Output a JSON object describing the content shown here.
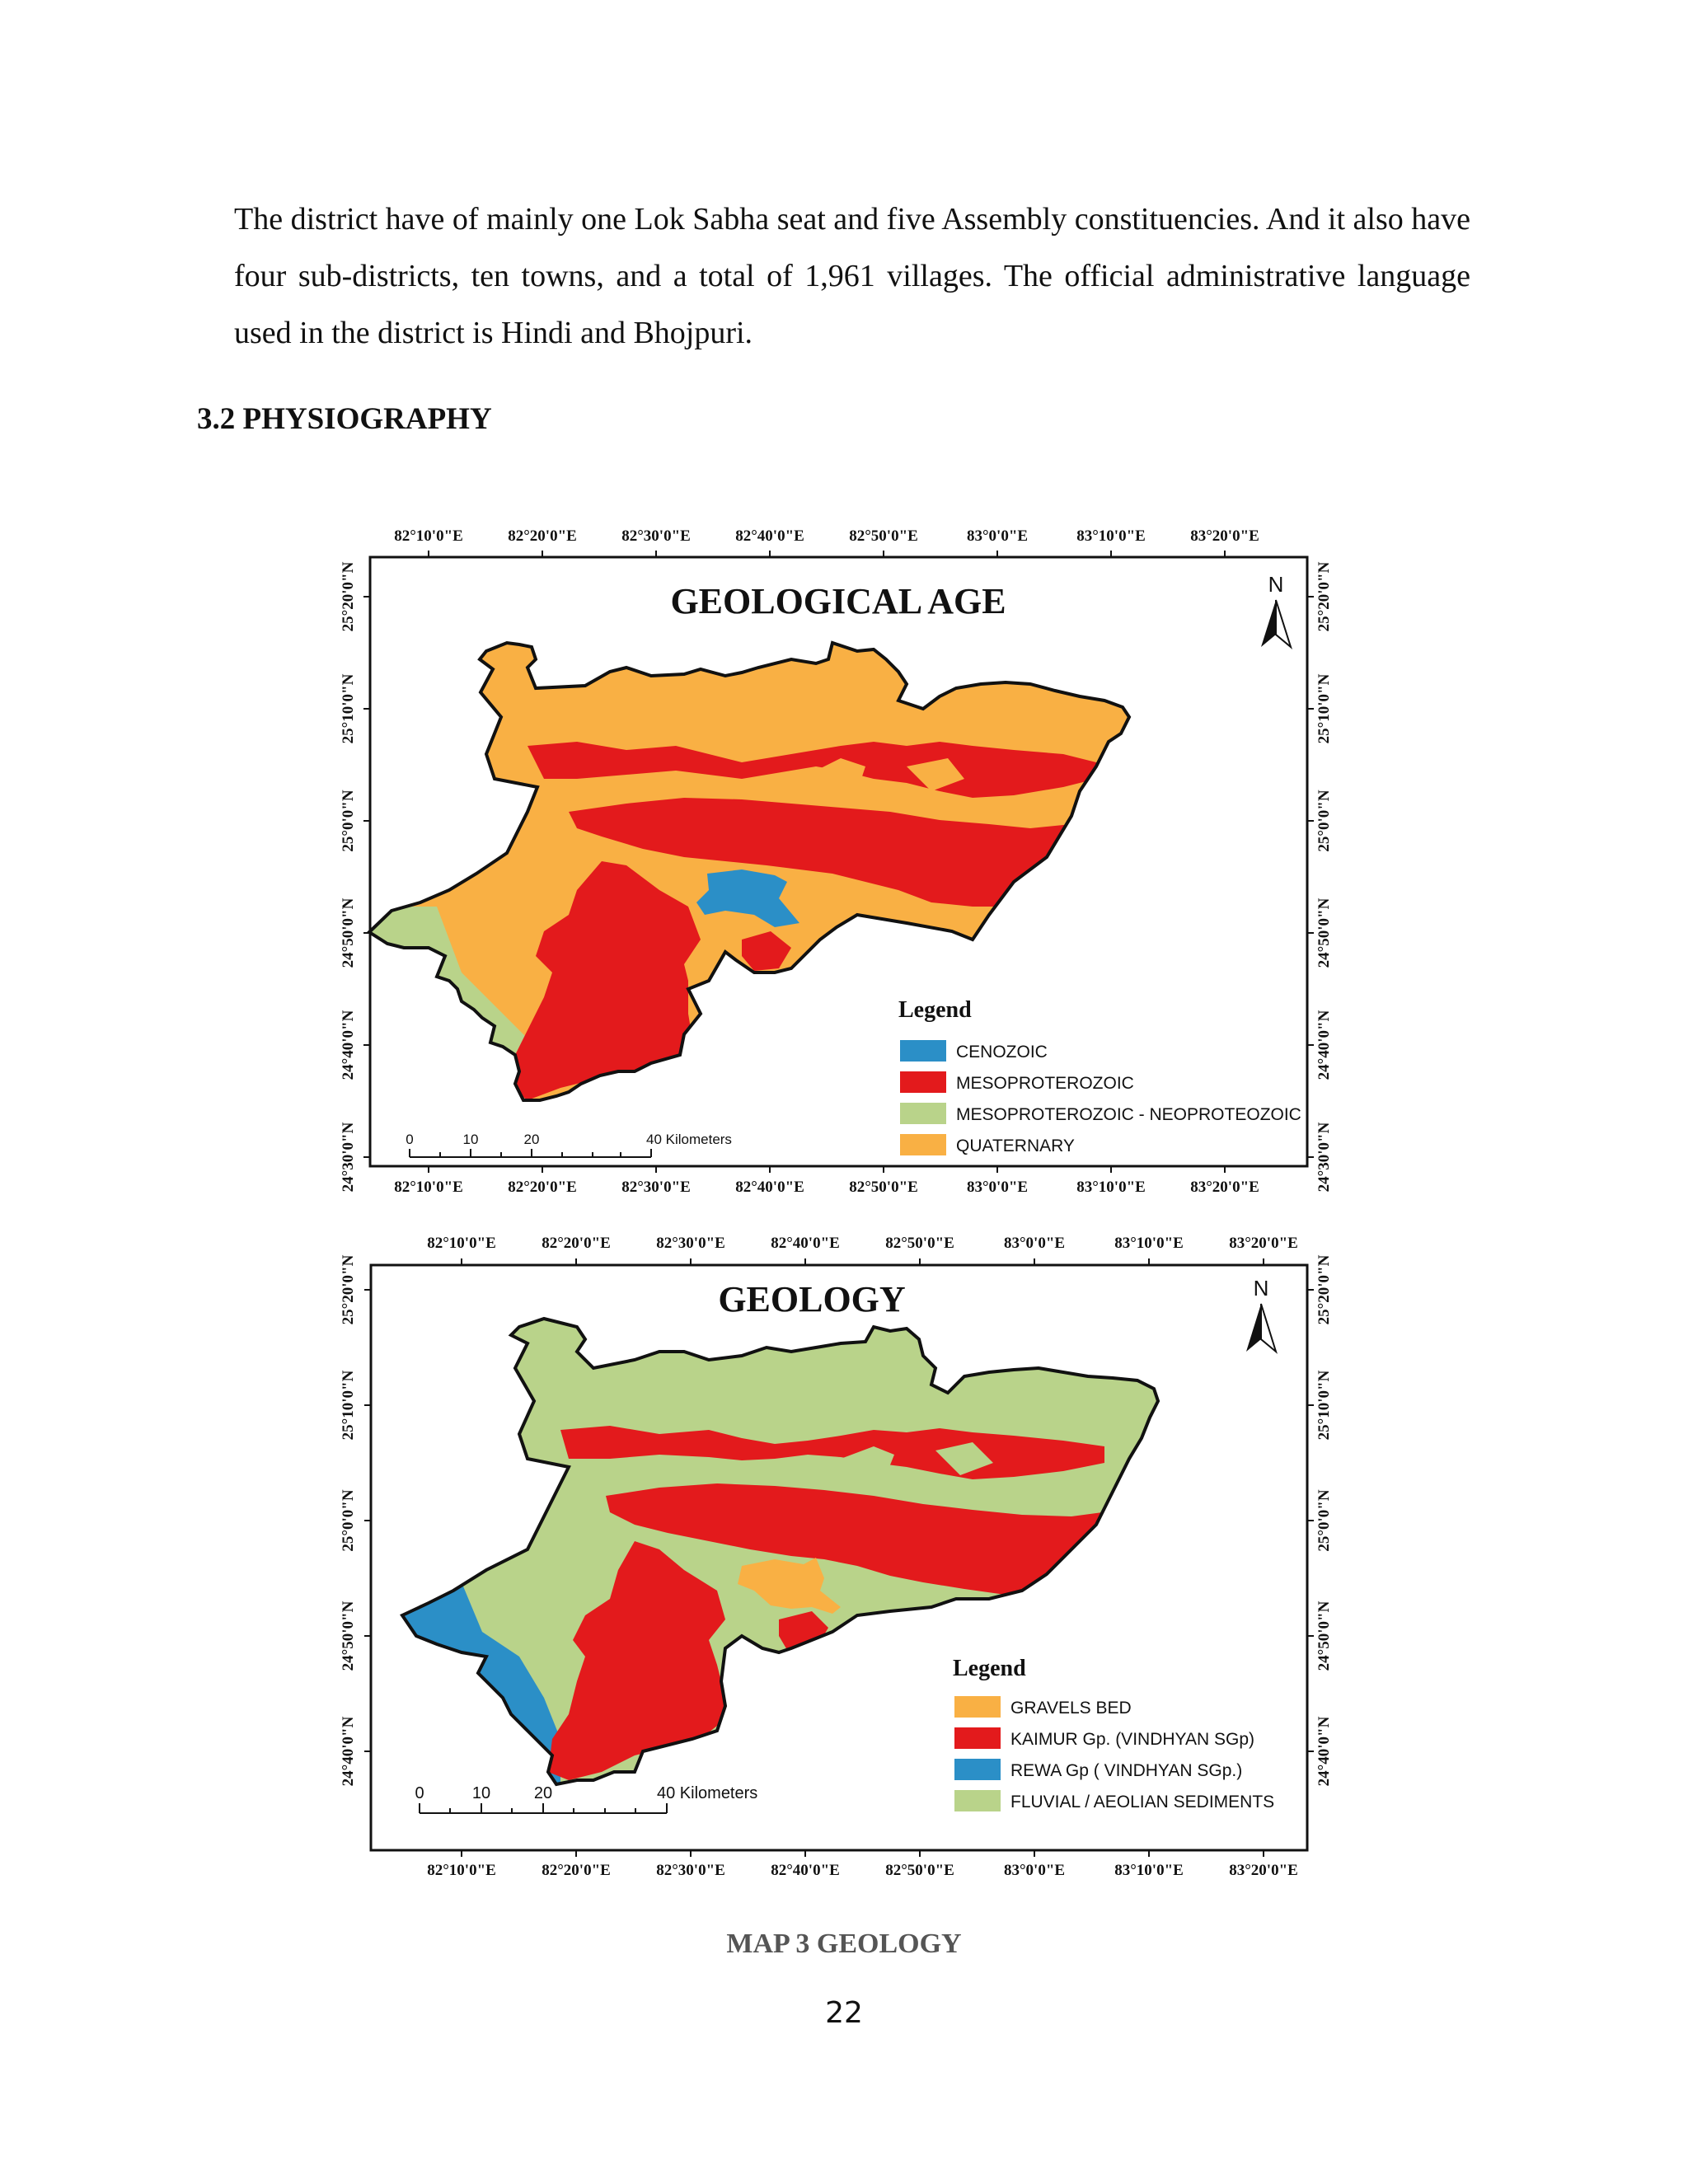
{
  "document": {
    "paragraph": "The district have of mainly one Lok Sabha seat and five Assembly constituencies. And it also have four sub-districts, ten towns, and a total of 1,961 villages. The official administrative language used in the district is Hindi and Bhojpuri.",
    "section_heading": "3.2 PHYSIOGRAPHY",
    "caption": "MAP 3 GEOLOGY",
    "page_number": "22"
  },
  "map_top": {
    "title": "GEOLOGICAL AGE",
    "north": "N",
    "lon_ticks": [
      "82°10'0\"E",
      "82°20'0\"E",
      "82°30'0\"E",
      "82°40'0\"E",
      "82°50'0\"E",
      "83°0'0\"E",
      "83°10'0\"E",
      "83°20'0\"E"
    ],
    "lat_ticks": [
      "25°20'0\"N",
      "25°10'0\"N",
      "25°0'0\"N",
      "24°50'0\"N",
      "24°40'0\"N",
      "24°30'0\"N"
    ],
    "legend_title": "Legend",
    "legend": [
      {
        "label": "CENOZOIC",
        "color": "#2b8fc7"
      },
      {
        "label": "MESOPROTEROZOIC",
        "color": "#e31a1c"
      },
      {
        "label": "MESOPROTEROZOIC - NEOPROTEOZOIC",
        "color": "#b9d38a"
      },
      {
        "label": "QUATERNARY",
        "color": "#f9b044"
      }
    ],
    "scale_ticks": [
      "0",
      "10",
      "20"
    ],
    "scale_label": "40 Kilometers"
  },
  "map_bottom": {
    "title": "GEOLOGY",
    "north": "N",
    "lon_ticks": [
      "82°10'0\"E",
      "82°20'0\"E",
      "82°30'0\"E",
      "82°40'0\"E",
      "82°50'0\"E",
      "83°0'0\"E",
      "83°10'0\"E",
      "83°20'0\"E"
    ],
    "lat_ticks": [
      "25°20'0\"N",
      "25°10'0\"N",
      "25°0'0\"N",
      "24°50'0\"N",
      "24°40'0\"N"
    ],
    "legend_title": "Legend",
    "legend": [
      {
        "label": "GRAVELS BED",
        "color": "#f9b044"
      },
      {
        "label": "KAIMUR Gp. (VINDHYAN SGp)",
        "color": "#e31a1c"
      },
      {
        "label": "REWA Gp ( VINDHYAN SGp.)",
        "color": "#2b8fc7"
      },
      {
        "label": "FLUVIAL / AEOLIAN SEDIMENTS",
        "color": "#b9d38a"
      }
    ],
    "scale_ticks": [
      "0",
      "10",
      "20"
    ],
    "scale_label": "40 Kilometers"
  }
}
